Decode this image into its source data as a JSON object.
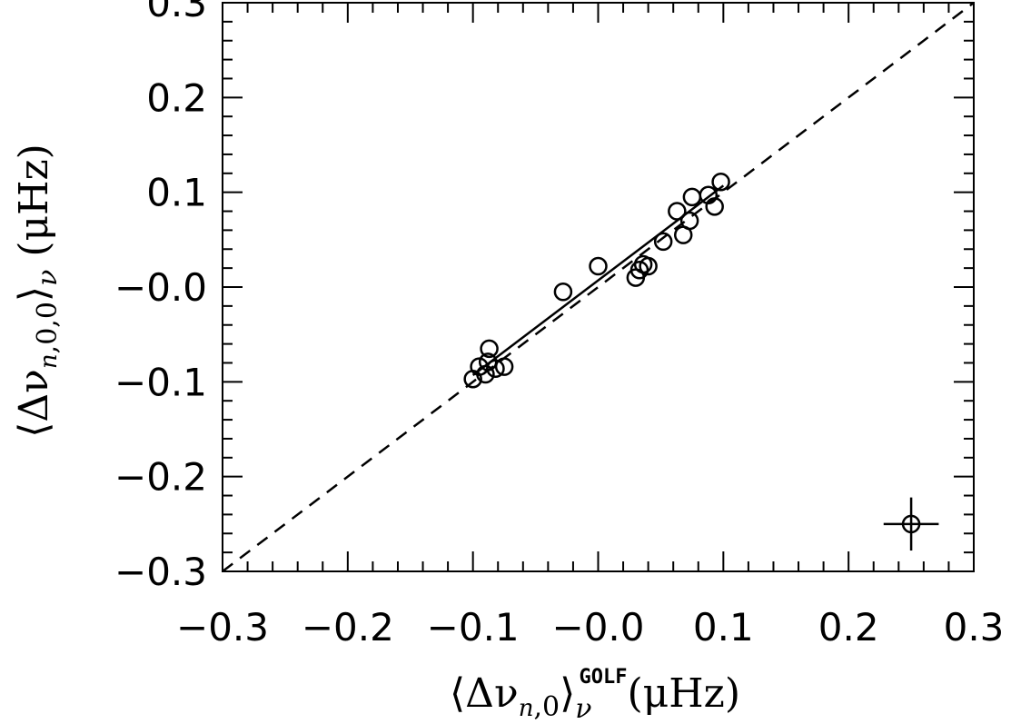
{
  "chart_data": {
    "type": "scatter",
    "xlim": [
      -0.3,
      0.3
    ],
    "ylim": [
      -0.3,
      0.3
    ],
    "x_ticks": [
      "−0.3",
      "−0.2",
      "−0.1",
      "−0.0",
      "0.1",
      "0.2",
      "0.3"
    ],
    "y_ticks": [
      "−0.3",
      "−0.2",
      "−0.1",
      "−0.0",
      "0.1",
      "0.2",
      "0.3"
    ],
    "x_tick_values": [
      -0.3,
      -0.2,
      -0.1,
      0.0,
      0.1,
      0.2,
      0.3
    ],
    "y_tick_values": [
      -0.3,
      -0.2,
      -0.1,
      0.0,
      0.1,
      0.2,
      0.3
    ],
    "xlabel": "⟨Δν n,0⟩ν GOLF (μHz)",
    "ylabel": "⟨Δν n,0,0⟩ν (μHz)",
    "grid": false,
    "legend": "none",
    "series": [
      {
        "marker": "open-circle",
        "points": [
          {
            "x": -0.1,
            "y": -0.097
          },
          {
            "x": -0.095,
            "y": -0.084
          },
          {
            "x": -0.09,
            "y": -0.092
          },
          {
            "x": -0.088,
            "y": -0.079
          },
          {
            "x": -0.087,
            "y": -0.065
          },
          {
            "x": -0.082,
            "y": -0.086
          },
          {
            "x": -0.075,
            "y": -0.084
          },
          {
            "x": -0.028,
            "y": -0.005
          },
          {
            "x": 0.0,
            "y": 0.022
          },
          {
            "x": 0.03,
            "y": 0.01
          },
          {
            "x": 0.033,
            "y": 0.018
          },
          {
            "x": 0.036,
            "y": 0.024
          },
          {
            "x": 0.04,
            "y": 0.022
          },
          {
            "x": 0.052,
            "y": 0.048
          },
          {
            "x": 0.063,
            "y": 0.08
          },
          {
            "x": 0.068,
            "y": 0.055
          },
          {
            "x": 0.073,
            "y": 0.07
          },
          {
            "x": 0.075,
            "y": 0.095
          },
          {
            "x": 0.088,
            "y": 0.097
          },
          {
            "x": 0.093,
            "y": 0.085
          },
          {
            "x": 0.098,
            "y": 0.111
          }
        ]
      }
    ],
    "reference_line": {
      "style": "dashed",
      "x": [
        -0.3,
        0.3
      ],
      "y": [
        -0.3,
        0.3
      ]
    },
    "fit_line": {
      "style": "solid",
      "x": [
        -0.1,
        0.1
      ],
      "y": [
        -0.093,
        0.107
      ]
    },
    "error_bar": {
      "x": 0.25,
      "y": -0.25,
      "xerr": 0.022,
      "yerr": 0.028
    }
  }
}
